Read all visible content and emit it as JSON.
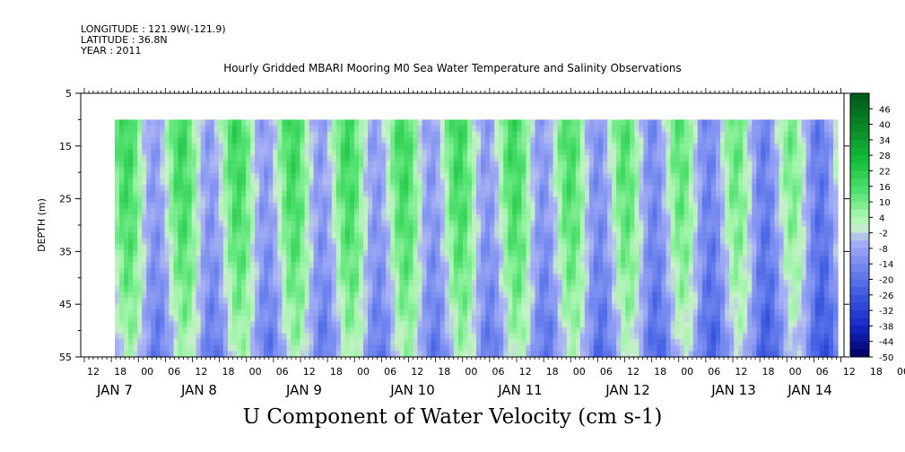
{
  "header": {
    "longitude": "LONGITUDE : 121.9W(-121.9)",
    "latitude": "LATITUDE : 36.8N",
    "year": "YEAR : 2011"
  },
  "chart_data": {
    "type": "heatmap",
    "title": "Hourly Gridded MBARI Mooring M0 Sea Water Temperature and Salinity Observations",
    "xlabel": "U Component of Water Velocity (cm s-1)",
    "ylabel": "DEPTH (m)",
    "ylim": [
      55,
      5
    ],
    "y_ticks": [
      5,
      15,
      25,
      35,
      45,
      55
    ],
    "data_depth_range": [
      10,
      55
    ],
    "x_hour_ticks": [
      "12",
      "18",
      "00",
      "06",
      "12",
      "18",
      "00",
      "06",
      "12",
      "18",
      "00",
      "06",
      "12",
      "18",
      "00",
      "06",
      "12",
      "18",
      "00",
      "06",
      "12",
      "18",
      "00",
      "06",
      "12",
      "18",
      "00",
      "06",
      "12",
      "18",
      "00",
      "06"
    ],
    "x_day_labels": [
      "JAN  7",
      "JAN  8",
      "JAN  9",
      "JAN 10",
      "JAN 11",
      "JAN 12",
      "JAN 13",
      "JAN 14"
    ],
    "colorbar": {
      "levels": [
        46,
        40,
        34,
        28,
        22,
        16,
        10,
        4,
        -2,
        -8,
        -14,
        -20,
        -26,
        -32,
        -38,
        -44,
        -50
      ],
      "range": [
        -50,
        52
      ]
    }
  }
}
